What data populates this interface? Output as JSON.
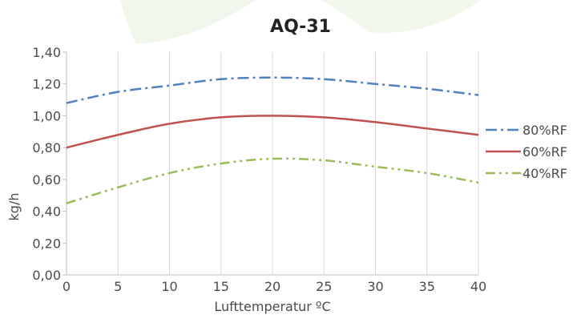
{
  "chart_data": {
    "type": "line",
    "title": "AQ-31",
    "xlabel": "Lufttemperatur ºC",
    "ylabel": "kg/h",
    "xlim": [
      0,
      40
    ],
    "ylim": [
      0,
      1.4
    ],
    "x_ticks": [
      "0",
      "5",
      "10",
      "15",
      "20",
      "25",
      "30",
      "35",
      "40"
    ],
    "y_ticks": [
      "0,00",
      "0,20",
      "0,40",
      "0,60",
      "0,80",
      "1,00",
      "1,20",
      "1,40"
    ],
    "grid": "vertical",
    "legend_position": "right",
    "x": [
      0,
      5,
      10,
      15,
      20,
      25,
      30,
      35,
      40
    ],
    "series": [
      {
        "name": "80%RF",
        "color": "#4f81bd",
        "style": "dash-dot",
        "values": [
          1.08,
          1.15,
          1.19,
          1.23,
          1.24,
          1.23,
          1.2,
          1.17,
          1.13
        ]
      },
      {
        "name": "60%RF",
        "color": "#c0504d",
        "style": "solid",
        "values": [
          0.8,
          0.88,
          0.95,
          0.99,
          1.0,
          0.99,
          0.96,
          0.92,
          0.88
        ]
      },
      {
        "name": "40%RF",
        "color": "#9bbb59",
        "style": "dash-dot-dot",
        "values": [
          0.45,
          0.55,
          0.64,
          0.7,
          0.73,
          0.72,
          0.68,
          0.64,
          0.58
        ]
      }
    ]
  }
}
